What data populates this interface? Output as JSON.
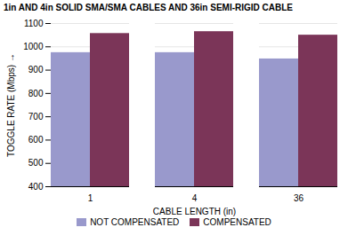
{
  "chart_data": {
    "type": "bar",
    "title": "1in AND 4in SOLID SMA/SMA CABLES AND 36in SEMI-RIGID CABLE",
    "xlabel": "CABLE LENGTH (in)",
    "ylabel": "TOGGLE RATE (Mbps)",
    "categories": [
      "1",
      "4",
      "36"
    ],
    "series": [
      {
        "name": "NOT COMPENSATED",
        "color": "#9999cc",
        "values": [
          975,
          975,
          948
        ]
      },
      {
        "name": "COMPENSATED",
        "color": "#7b3558",
        "values": [
          1057,
          1065,
          1050
        ]
      }
    ],
    "ylim": [
      400,
      1100
    ],
    "yticks": [
      400,
      500,
      600,
      700,
      800,
      900,
      1000,
      1100
    ],
    "grid": true,
    "legend": "bottom"
  }
}
